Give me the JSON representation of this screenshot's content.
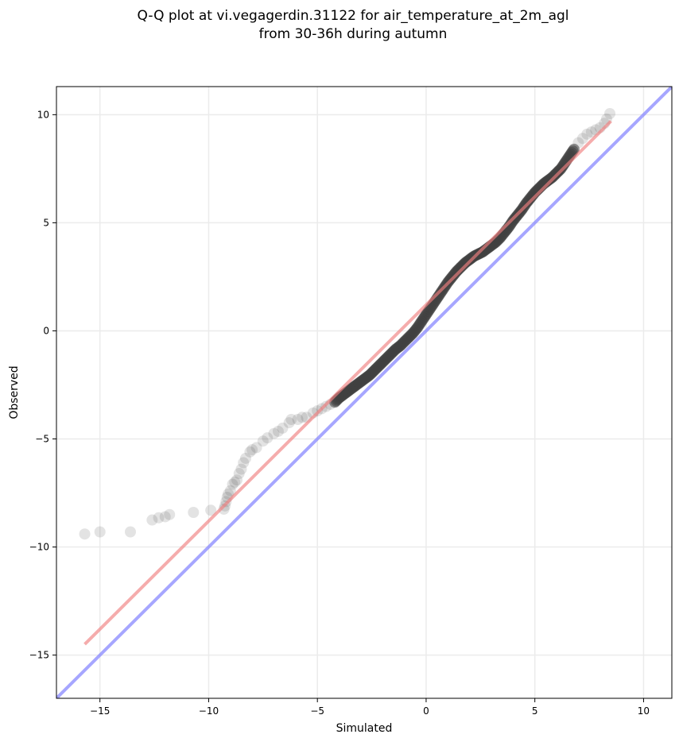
{
  "chart_data": {
    "type": "scatter",
    "title_line1": "Q-Q plot at vi.vegagerdin.31122 for air_temperature_at_2m_agl",
    "title_line2": "from 30-36h during autumn",
    "xlabel": "Simulated",
    "ylabel": "Observed",
    "xlim": [
      -17,
      11.3
    ],
    "ylim": [
      -17,
      11.3
    ],
    "xticks": [
      -15,
      -10,
      -5,
      0,
      5,
      10
    ],
    "yticks": [
      -15,
      -10,
      -5,
      0,
      5,
      10
    ],
    "xtick_labels": [
      "−15",
      "−10",
      "−5",
      "0",
      "5",
      "10"
    ],
    "ytick_labels": [
      "−15",
      "−10",
      "−5",
      "0",
      "5",
      "10"
    ],
    "grid": true,
    "colors": {
      "points": "#404040",
      "fit_line": "#f08080",
      "identity_line": "#8080ff",
      "grid": "#ebebeb"
    },
    "identity_line": {
      "from": [
        -17,
        -17
      ],
      "to": [
        11.3,
        11.3
      ]
    },
    "fit_line": {
      "from": [
        -15.7,
        -14.5
      ],
      "to": [
        8.5,
        9.7
      ]
    },
    "tail_points": [
      [
        -15.7,
        -9.4
      ],
      [
        -15.0,
        -9.3
      ],
      [
        -13.6,
        -9.3
      ],
      [
        -12.6,
        -8.75
      ],
      [
        -12.3,
        -8.65
      ],
      [
        -12.0,
        -8.6
      ],
      [
        -11.8,
        -8.5
      ],
      [
        -10.7,
        -8.4
      ],
      [
        -9.9,
        -8.3
      ],
      [
        -9.3,
        -8.25
      ],
      [
        -9.25,
        -8.1
      ],
      [
        -9.2,
        -7.9
      ],
      [
        -9.15,
        -7.7
      ],
      [
        -9.1,
        -7.55
      ],
      [
        -9.0,
        -7.4
      ],
      [
        -8.9,
        -7.1
      ],
      [
        -8.8,
        -7.0
      ],
      [
        -8.7,
        -6.9
      ],
      [
        -8.6,
        -6.6
      ],
      [
        -8.5,
        -6.4
      ],
      [
        -8.4,
        -6.1
      ],
      [
        -8.3,
        -5.9
      ],
      [
        -8.1,
        -5.6
      ],
      [
        -8.0,
        -5.5
      ],
      [
        -7.8,
        -5.4
      ],
      [
        -7.5,
        -5.1
      ],
      [
        -7.3,
        -4.95
      ],
      [
        -7.0,
        -4.75
      ],
      [
        -6.8,
        -4.65
      ],
      [
        -6.6,
        -4.5
      ],
      [
        -6.3,
        -4.25
      ],
      [
        -6.2,
        -4.1
      ],
      [
        -5.9,
        -4.1
      ],
      [
        -5.7,
        -4.0
      ],
      [
        -5.5,
        -4.0
      ],
      [
        -5.2,
        -3.8
      ],
      [
        -5.0,
        -3.7
      ],
      [
        -4.8,
        -3.6
      ],
      [
        -4.6,
        -3.5
      ],
      [
        -4.4,
        -3.4
      ],
      [
        7.0,
        8.7
      ],
      [
        7.2,
        8.9
      ],
      [
        7.4,
        9.1
      ],
      [
        7.6,
        9.2
      ],
      [
        7.8,
        9.3
      ],
      [
        8.0,
        9.4
      ],
      [
        8.2,
        9.6
      ],
      [
        8.3,
        9.8
      ],
      [
        8.45,
        10.05
      ]
    ],
    "body_points": [
      [
        -4.2,
        -3.3
      ],
      [
        -4.0,
        -3.1
      ],
      [
        -3.8,
        -2.95
      ],
      [
        -3.6,
        -2.8
      ],
      [
        -3.4,
        -2.65
      ],
      [
        -3.2,
        -2.5
      ],
      [
        -3.0,
        -2.35
      ],
      [
        -2.8,
        -2.2
      ],
      [
        -2.6,
        -2.05
      ],
      [
        -2.4,
        -1.85
      ],
      [
        -2.2,
        -1.65
      ],
      [
        -2.0,
        -1.45
      ],
      [
        -1.8,
        -1.25
      ],
      [
        -1.6,
        -1.05
      ],
      [
        -1.4,
        -0.85
      ],
      [
        -1.2,
        -0.7
      ],
      [
        -1.0,
        -0.5
      ],
      [
        -0.8,
        -0.3
      ],
      [
        -0.6,
        -0.1
      ],
      [
        -0.4,
        0.15
      ],
      [
        -0.2,
        0.45
      ],
      [
        0.0,
        0.75
      ],
      [
        0.2,
        1.05
      ],
      [
        0.4,
        1.35
      ],
      [
        0.6,
        1.65
      ],
      [
        0.8,
        1.95
      ],
      [
        1.0,
        2.25
      ],
      [
        1.2,
        2.5
      ],
      [
        1.4,
        2.75
      ],
      [
        1.6,
        2.95
      ],
      [
        1.8,
        3.15
      ],
      [
        2.0,
        3.3
      ],
      [
        2.2,
        3.45
      ],
      [
        2.4,
        3.55
      ],
      [
        2.6,
        3.65
      ],
      [
        2.8,
        3.8
      ],
      [
        3.0,
        3.95
      ],
      [
        3.2,
        4.1
      ],
      [
        3.4,
        4.3
      ],
      [
        3.6,
        4.55
      ],
      [
        3.8,
        4.8
      ],
      [
        4.0,
        5.1
      ],
      [
        4.2,
        5.35
      ],
      [
        4.4,
        5.6
      ],
      [
        4.6,
        5.9
      ],
      [
        4.8,
        6.15
      ],
      [
        5.0,
        6.4
      ],
      [
        5.2,
        6.6
      ],
      [
        5.4,
        6.8
      ],
      [
        5.6,
        6.95
      ],
      [
        5.8,
        7.1
      ],
      [
        6.0,
        7.3
      ],
      [
        6.2,
        7.5
      ],
      [
        6.4,
        7.8
      ],
      [
        6.6,
        8.1
      ],
      [
        6.8,
        8.4
      ]
    ]
  }
}
